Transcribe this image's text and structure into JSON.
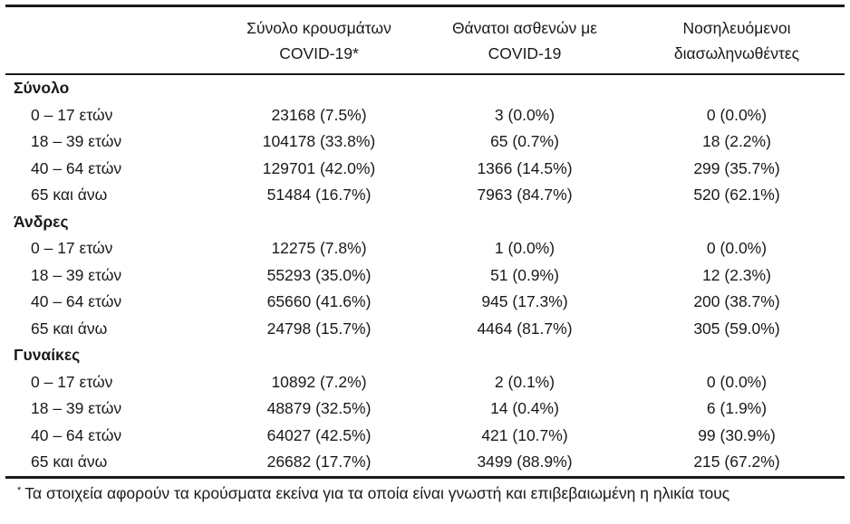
{
  "theme": {
    "background": "#ffffff",
    "text": "#1a1a1a",
    "border": "#1a1a1a"
  },
  "table": {
    "headers": [
      {
        "line1": "Σύνολο κρουσμάτων",
        "line2": "COVID-19*"
      },
      {
        "line1": "Θάνατοι ασθενών με",
        "line2": "COVID-19"
      },
      {
        "line1": "Νοσηλευόμενοι",
        "line2": "διασωληνωθέντες"
      }
    ],
    "sections": [
      {
        "label": "Σύνολο",
        "rows": [
          {
            "age": "0 – 17 ετών",
            "cases": "23168 (7.5%)",
            "deaths": "3 (0.0%)",
            "intubated": "0 (0.0%)"
          },
          {
            "age": "18 – 39 ετών",
            "cases": "104178 (33.8%)",
            "deaths": "65 (0.7%)",
            "intubated": "18 (2.2%)"
          },
          {
            "age": "40 – 64 ετών",
            "cases": "129701 (42.0%)",
            "deaths": "1366 (14.5%)",
            "intubated": "299 (35.7%)"
          },
          {
            "age": "65 και άνω",
            "cases": "51484 (16.7%)",
            "deaths": "7963 (84.7%)",
            "intubated": "520 (62.1%)"
          }
        ]
      },
      {
        "label": "Άνδρες",
        "rows": [
          {
            "age": "0 – 17 ετών",
            "cases": "12275 (7.8%)",
            "deaths": "1 (0.0%)",
            "intubated": "0 (0.0%)"
          },
          {
            "age": "18 – 39 ετών",
            "cases": "55293 (35.0%)",
            "deaths": "51 (0.9%)",
            "intubated": "12 (2.3%)"
          },
          {
            "age": "40 – 64 ετών",
            "cases": "65660 (41.6%)",
            "deaths": "945 (17.3%)",
            "intubated": "200 (38.7%)"
          },
          {
            "age": "65 και άνω",
            "cases": "24798 (15.7%)",
            "deaths": "4464 (81.7%)",
            "intubated": "305 (59.0%)"
          }
        ]
      },
      {
        "label": "Γυναίκες",
        "rows": [
          {
            "age": "0 – 17 ετών",
            "cases": "10892 (7.2%)",
            "deaths": "2 (0.1%)",
            "intubated": "0 (0.0%)"
          },
          {
            "age": "18 – 39 ετών",
            "cases": "48879 (32.5%)",
            "deaths": "14 (0.4%)",
            "intubated": "6 (1.9%)"
          },
          {
            "age": "40 – 64 ετών",
            "cases": "64027 (42.5%)",
            "deaths": "421 (10.7%)",
            "intubated": "99 (30.9%)"
          },
          {
            "age": "65 και άνω",
            "cases": "26682 (17.7%)",
            "deaths": "3499 (88.9%)",
            "intubated": "215 (67.2%)"
          }
        ]
      }
    ]
  },
  "footnote": {
    "marker": "*",
    "text": "Τα στοιχεία αφορούν τα κρούσματα εκείνα για τα οποία είναι γνωστή και επιβεβαιωμένη η ηλικία τους"
  }
}
